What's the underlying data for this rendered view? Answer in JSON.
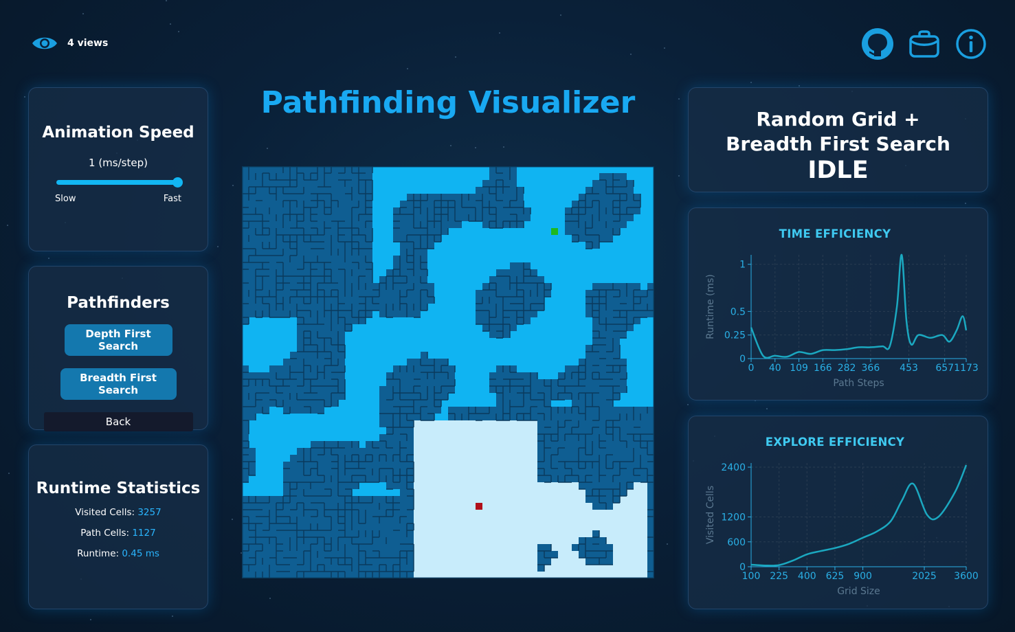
{
  "header": {
    "views_label": "4 views",
    "icons": [
      "eye-icon",
      "github-icon",
      "briefcase-icon",
      "info-icon"
    ]
  },
  "title": "Pathfinding Visualizer",
  "speed": {
    "title": "Animation Speed",
    "value_label": "1 (ms/step)",
    "slider_value_fraction": 1.0,
    "slow_label": "Slow",
    "fast_label": "Fast"
  },
  "pathfinders": {
    "title": "Pathfinders",
    "buttons": [
      "Depth First Search",
      "Breadth First Search"
    ],
    "back_label": "Back"
  },
  "stats": {
    "title": "Runtime Statistics",
    "visited_label": "Visited Cells:",
    "visited_value": "3257",
    "path_label": "Path Cells:",
    "path_value": "1127",
    "runtime_label": "Runtime:",
    "runtime_value": "0.45 ms"
  },
  "status": {
    "mode": "Random Grid + Breadth First Search",
    "state": "IDLE"
  },
  "colors": {
    "accent": "#19a9f2",
    "maze_wall": "#0a3a5c",
    "maze_unvisited": "#0f5e92",
    "maze_visited": "#10b4f2",
    "maze_path": "#c8ecfb",
    "start": "#1fb81f",
    "end": "#b0101a",
    "chart_line": "#1ba8c0"
  },
  "maze": {
    "grid_size": 60,
    "start_cell": [
      45,
      9
    ],
    "end_cell": [
      34,
      49
    ]
  },
  "chart_data": [
    {
      "type": "line",
      "title": "TIME EFFICIENCY",
      "xlabel": "Path Steps",
      "ylabel": "Runtime (ms)",
      "x_ticks": [
        "0",
        "40",
        "109",
        "166",
        "282",
        "366",
        "453",
        "657",
        "1173"
      ],
      "y_ticks": [
        "0",
        "0.25",
        "0.5",
        "1"
      ],
      "ylim": [
        0,
        1.1
      ],
      "points": [
        [
          0,
          0.33
        ],
        [
          0.5,
          0.03
        ],
        [
          1,
          0.03
        ],
        [
          1.5,
          0.02
        ],
        [
          2,
          0.07
        ],
        [
          2.5,
          0.05
        ],
        [
          3,
          0.09
        ],
        [
          3.5,
          0.09
        ],
        [
          4,
          0.1
        ],
        [
          4.5,
          0.12
        ],
        [
          5,
          0.12
        ],
        [
          5.5,
          0.13
        ],
        [
          5.8,
          0.13
        ],
        [
          6.1,
          0.55
        ],
        [
          6.3,
          1.1
        ],
        [
          6.5,
          0.4
        ],
        [
          6.7,
          0.15
        ],
        [
          7,
          0.25
        ],
        [
          7.5,
          0.22
        ],
        [
          8,
          0.25
        ],
        [
          8.3,
          0.18
        ],
        [
          8.6,
          0.3
        ],
        [
          8.85,
          0.45
        ],
        [
          9,
          0.3
        ]
      ]
    },
    {
      "type": "line",
      "title": "EXPLORE EFFICIENCY",
      "xlabel": "Grid Size",
      "ylabel": "Visited Cells",
      "x_ticks": [
        "100",
        "225",
        "400",
        "625",
        "900",
        "2025",
        "3600"
      ],
      "y_ticks": [
        "0",
        "600",
        "1200",
        "2400"
      ],
      "ylim": [
        0,
        2500
      ],
      "points": [
        [
          0,
          50
        ],
        [
          0.5,
          30
        ],
        [
          1,
          40
        ],
        [
          1.5,
          150
        ],
        [
          2,
          300
        ],
        [
          2.5,
          380
        ],
        [
          3,
          450
        ],
        [
          3.5,
          550
        ],
        [
          4,
          700
        ],
        [
          4.5,
          850
        ],
        [
          5,
          1100
        ],
        [
          5.4,
          1600
        ],
        [
          5.8,
          2000
        ],
        [
          6.3,
          1250
        ],
        [
          6.7,
          1200
        ],
        [
          7.3,
          1800
        ],
        [
          7.7,
          2450
        ]
      ]
    }
  ]
}
